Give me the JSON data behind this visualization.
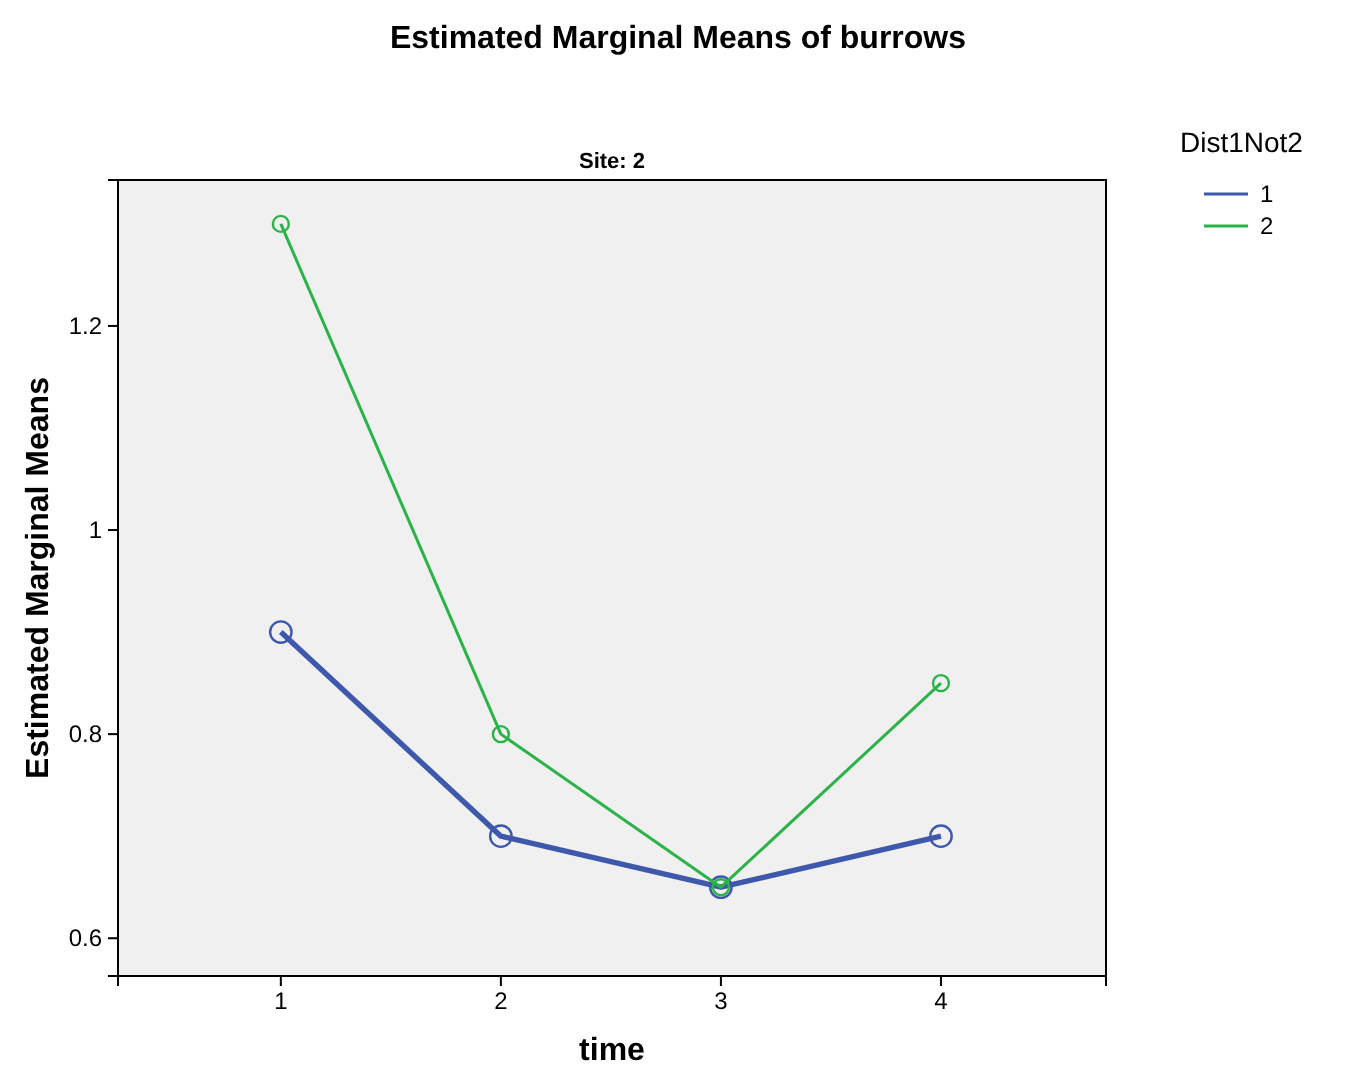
{
  "chart_data": {
    "type": "line",
    "title": "Estimated Marginal Means of burrows",
    "subtitle": "Site: 2",
    "xlabel": "time",
    "ylabel": "Estimated Marginal Means",
    "legend_title": "Dist1Not2",
    "x": [
      1,
      2,
      3,
      4
    ],
    "xlim": [
      0.26,
      4.75
    ],
    "xticks": [
      1,
      2,
      3,
      4
    ],
    "ylim": [
      0.563,
      1.343
    ],
    "yticks": [
      0.6,
      0.8,
      1,
      1.2
    ],
    "marker": "circle",
    "legend": "top right",
    "grid": false,
    "series": [
      {
        "name": "1",
        "color": "#3e58ac",
        "values": [
          0.9,
          0.7,
          0.65,
          0.7
        ]
      },
      {
        "name": "2",
        "color": "#2bb34a",
        "values": [
          1.3,
          0.8,
          0.65,
          0.85
        ]
      }
    ]
  }
}
